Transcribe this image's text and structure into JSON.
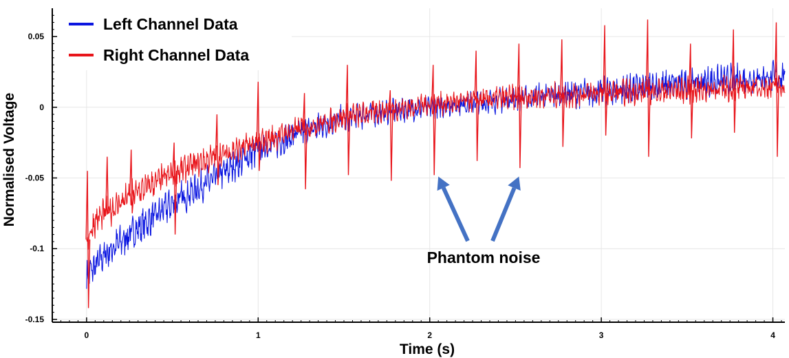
{
  "chart_data": {
    "type": "line",
    "title": "",
    "xlabel": "Time (s)",
    "ylabel": "Normalised Voltage",
    "xlim": [
      -0.2,
      4.07
    ],
    "ylim": [
      -0.152,
      0.07
    ],
    "x_ticks": [
      {
        "value": 0,
        "label": "0"
      },
      {
        "value": 1,
        "label": "1"
      },
      {
        "value": 2,
        "label": "2"
      },
      {
        "value": 3,
        "label": "3"
      },
      {
        "value": 4,
        "label": "4"
      }
    ],
    "y_ticks": [
      {
        "value": 0.05,
        "label": "0.05"
      },
      {
        "value": 0,
        "label": "0"
      },
      {
        "value": -0.05,
        "label": "-0.05"
      },
      {
        "value": -0.1,
        "label": "-0.1"
      },
      {
        "value": -0.15,
        "label": "-0.15"
      }
    ],
    "grid": true,
    "legend_position": "top-left",
    "series": [
      {
        "name": "Left Channel Data",
        "color": "#0b16e0",
        "trend": [
          [
            0.0,
            -0.12
          ],
          [
            0.1,
            -0.105
          ],
          [
            0.25,
            -0.09
          ],
          [
            0.5,
            -0.068
          ],
          [
            0.75,
            -0.05
          ],
          [
            1.0,
            -0.03
          ],
          [
            1.25,
            -0.018
          ],
          [
            1.5,
            -0.008
          ],
          [
            1.75,
            -0.003
          ],
          [
            2.0,
            0.0
          ],
          [
            2.5,
            0.006
          ],
          [
            3.0,
            0.011
          ],
          [
            3.5,
            0.017
          ],
          [
            4.07,
            0.022
          ]
        ],
        "noise": [
          [
            0.0,
            0.012
          ],
          [
            1.0,
            0.011
          ],
          [
            2.0,
            0.008
          ],
          [
            3.0,
            0.01
          ],
          [
            4.07,
            0.011
          ]
        ]
      },
      {
        "name": "Right Channel Data",
        "color": "#e8141a",
        "trend": [
          [
            0.0,
            -0.095
          ],
          [
            0.05,
            -0.08
          ],
          [
            0.25,
            -0.063
          ],
          [
            0.5,
            -0.047
          ],
          [
            0.75,
            -0.035
          ],
          [
            1.0,
            -0.025
          ],
          [
            1.25,
            -0.015
          ],
          [
            1.5,
            -0.007
          ],
          [
            1.75,
            -0.002
          ],
          [
            2.0,
            0.002
          ],
          [
            2.5,
            0.007
          ],
          [
            3.0,
            0.01
          ],
          [
            3.5,
            0.012
          ],
          [
            4.07,
            0.015
          ]
        ],
        "noise": [
          [
            0.0,
            0.011
          ],
          [
            1.0,
            0.009
          ],
          [
            2.0,
            0.008
          ],
          [
            3.0,
            0.009
          ],
          [
            4.07,
            0.009
          ]
        ],
        "spikes": [
          {
            "x": 0.005,
            "hi": -0.045,
            "lo": -0.142
          },
          {
            "x": 0.12,
            "hi": -0.035,
            "lo": -0.075
          },
          {
            "x": 0.26,
            "hi": -0.03,
            "lo": -0.075
          },
          {
            "x": 0.51,
            "hi": -0.025,
            "lo": -0.09
          },
          {
            "x": 0.76,
            "hi": -0.005,
            "lo": -0.055
          },
          {
            "x": 1.0,
            "hi": 0.018,
            "lo": -0.045
          },
          {
            "x": 1.27,
            "hi": 0.01,
            "lo": -0.058
          },
          {
            "x": 1.52,
            "hi": 0.03,
            "lo": -0.048
          },
          {
            "x": 1.77,
            "hi": 0.012,
            "lo": -0.052
          },
          {
            "x": 2.02,
            "hi": 0.03,
            "lo": -0.048
          },
          {
            "x": 2.27,
            "hi": 0.04,
            "lo": -0.038
          },
          {
            "x": 2.52,
            "hi": 0.045,
            "lo": -0.043
          },
          {
            "x": 2.77,
            "hi": 0.048,
            "lo": -0.028
          },
          {
            "x": 3.02,
            "hi": 0.058,
            "lo": -0.02
          },
          {
            "x": 3.27,
            "hi": 0.062,
            "lo": -0.035
          },
          {
            "x": 3.52,
            "hi": 0.045,
            "lo": -0.022
          },
          {
            "x": 3.77,
            "hi": 0.055,
            "lo": -0.018
          },
          {
            "x": 4.02,
            "hi": 0.06,
            "lo": -0.035
          }
        ]
      }
    ],
    "annotations": [
      {
        "text": "Phantom noise",
        "arrow_targets": [
          {
            "x": 2.05,
            "y": -0.049
          },
          {
            "x": 2.52,
            "y": -0.049
          }
        ]
      }
    ],
    "annotation_color": "#4472c4",
    "grid_color": "#e6e6e6"
  }
}
